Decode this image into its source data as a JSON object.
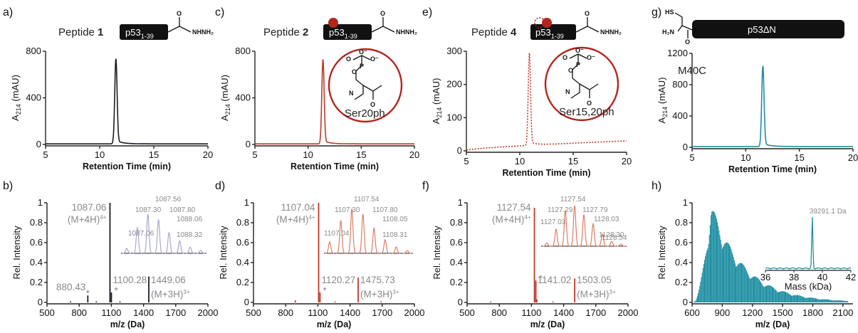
{
  "panels": {
    "a": {
      "label": "a)",
      "title_prefix": "Peptide ",
      "title_num": "1",
      "pep_box": "p53",
      "pep_sub": "1-39",
      "hydrazide": "NHNH₂",
      "ylabel": "A",
      "ylabel_sub": "214",
      "ylabel_unit": " (mAU)",
      "xlabel": "Retention Time (min)"
    },
    "c": {
      "label": "c)",
      "title_prefix": "Peptide ",
      "title_num": "2",
      "pep_box": "p53",
      "pep_sub": "1-39",
      "hydrazide": "NHNH₂",
      "ylabel": "A",
      "ylabel_sub": "214",
      "ylabel_unit": " (mAU)",
      "xlabel": "Retention Time (min)",
      "circle_label": "Ser20ph"
    },
    "e": {
      "label": "e)",
      "title_prefix": "Peptide ",
      "title_num": "4",
      "pep_box": "p53",
      "pep_sub": "1-39",
      "hydrazide": "NHNH₂",
      "ylabel": "A",
      "ylabel_sub": "214",
      "ylabel_unit": " (mAU)",
      "xlabel": "Retention Time (min)",
      "circle_label": "Ser15,20ph"
    },
    "g": {
      "label": "g)",
      "pep_box": "p53ΔN",
      "hs": "HS",
      "h2n": "H₂N",
      "mutation": "M40C",
      "ylabel": "A",
      "ylabel_sub": "214",
      "ylabel_unit": " (mAU)",
      "xlabel": "Retention Time (min)"
    },
    "b": {
      "label": "b)",
      "ylabel": "Rel. Intensity",
      "xlabel": "m/z (Da)",
      "main_peak": "1087.06",
      "main_ion": "(M+4H)",
      "main_charge": "4+",
      "peak2": "880.43",
      "peak3": "1100.28",
      "peak4": "1449.06",
      "peak4_ion": "(M+3H)",
      "peak4_charge": "3+",
      "inset_labels": [
        "1087.06",
        "1087.30",
        "1087.56",
        "1087.80",
        "1088.06",
        "1088.32"
      ]
    },
    "d": {
      "label": "d)",
      "ylabel": "Rel. Intensity",
      "xlabel": "m/z (Da)",
      "main_peak": "1107.04",
      "main_ion": "(M+4H)",
      "main_charge": "4+",
      "peak3": "1120.27",
      "peak4": "1475.73",
      "peak4_ion": "(M+3H)",
      "peak4_charge": "3+",
      "inset_labels": [
        "1107.04",
        "1107.30",
        "1107.54",
        "1107.80",
        "1108.05",
        "1108.31"
      ]
    },
    "f": {
      "label": "f)",
      "ylabel": "Rel. Intensity",
      "xlabel": "m/z (Da)",
      "main_peak": "1127.54",
      "main_ion": "(M+4H)",
      "main_charge": "4+",
      "peak3": "1141.02",
      "peak4": "1503.05",
      "peak4_ion": "(M+3H)",
      "peak4_charge": "3+",
      "inset_labels": [
        "1127.03",
        "1127.29",
        "1127.54",
        "1127.79",
        "1128.03",
        "1128.30",
        "1128.54"
      ]
    },
    "h": {
      "label": "h)",
      "ylabel": "Rel. Intensity",
      "xlabel": "m/z (Da)",
      "inset_peak": "39291.1 Da",
      "inset_xlabel": "Mass (kDa)",
      "inset_ticks": [
        "36",
        "38",
        "40",
        "42"
      ]
    }
  },
  "colors": {
    "black": "#1c1c26",
    "red": "#c0392b",
    "teal": "#1f8fa3",
    "grey": "#8a8a8a",
    "lavender": "#a7a8cf",
    "salmon": "#e07d62"
  },
  "chart_data": [
    {
      "panel": "a",
      "type": "line",
      "xlabel": "Retention Time (min)",
      "ylabel": "A214 (mAU)",
      "xlim": [
        5,
        20
      ],
      "ylim": [
        0,
        800
      ],
      "xticks": [
        "5",
        "10",
        "15",
        "20"
      ],
      "yticks": [
        "0",
        "400",
        "800"
      ],
      "series": [
        {
          "peak_x": 11.5,
          "peak_y": 730,
          "baseline": 5
        }
      ]
    },
    {
      "panel": "c",
      "type": "line",
      "xlabel": "Retention Time (min)",
      "ylabel": "A214 (mAU)",
      "xlim": [
        5,
        20
      ],
      "ylim": [
        0,
        800
      ],
      "xticks": [
        "5",
        "10",
        "15",
        "20"
      ],
      "yticks": [
        "0",
        "400",
        "800"
      ],
      "series": [
        {
          "peak_x": 11.4,
          "peak_y": 725,
          "baseline": 5
        }
      ]
    },
    {
      "panel": "e",
      "type": "line",
      "xlabel": "Retention Time (min)",
      "ylabel": "A214 (mAU)",
      "xlim": [
        5,
        20
      ],
      "ylim": [
        0,
        300
      ],
      "xticks": [
        "5",
        "10",
        "15",
        "20"
      ],
      "yticks": [
        "0",
        "100",
        "200",
        "300"
      ],
      "series": [
        {
          "peak_x": 10.9,
          "peak_y": 278,
          "baseline_start": 2,
          "baseline_end": 30,
          "dashed": true
        }
      ]
    },
    {
      "panel": "g",
      "type": "line",
      "xlabel": "Retention Time (min)",
      "ylabel": "A214 (mAU)",
      "xlim": [
        5,
        20
      ],
      "ylim": [
        0,
        1200
      ],
      "xticks": [
        "5",
        "10",
        "15",
        "20"
      ],
      "yticks": [
        "0",
        "400",
        "800",
        "1200"
      ],
      "series": [
        {
          "peak_x": 11.6,
          "peak_y": 1030,
          "baseline": 10
        }
      ]
    },
    {
      "panel": "b",
      "type": "bar",
      "xlabel": "m/z (Da)",
      "ylabel": "Rel. Intensity",
      "xlim": [
        500,
        2000
      ],
      "ylim": [
        0,
        1
      ],
      "xticks": [
        "500",
        "800",
        "1100",
        "1400",
        "1700",
        "2000"
      ],
      "yticks": [
        "0",
        "0.2",
        "0.4",
        "0.6",
        "0.8",
        "1"
      ],
      "peaks": [
        [
          880.43,
          0.07
        ],
        [
          1087.06,
          1.0
        ],
        [
          1100.28,
          0.1
        ],
        [
          1449.06,
          0.26
        ],
        [
          720,
          0.01
        ],
        [
          960,
          0.01
        ],
        [
          1180,
          0.01
        ]
      ],
      "inset_heights": [
        0.12,
        0.62,
        0.95,
        0.82,
        0.5,
        0.3,
        0.15,
        0.07
      ]
    },
    {
      "panel": "d",
      "type": "bar",
      "xlabel": "m/z (Da)",
      "ylabel": "Rel. Intensity",
      "xlim": [
        500,
        2000
      ],
      "ylim": [
        0,
        1
      ],
      "xticks": [
        "500",
        "800",
        "1100",
        "1400",
        "1700",
        "2000"
      ],
      "yticks": [
        "0",
        "0.2",
        "0.4",
        "0.6",
        "0.8",
        "1"
      ],
      "peaks": [
        [
          1107.04,
          1.0
        ],
        [
          1120.27,
          0.1
        ],
        [
          1475.73,
          0.25
        ],
        [
          890,
          0.02
        ],
        [
          1260,
          0.01
        ],
        [
          1690,
          0.01
        ]
      ],
      "inset_heights": [
        0.25,
        0.72,
        0.98,
        0.86,
        0.55,
        0.3,
        0.14,
        0.06
      ]
    },
    {
      "panel": "f",
      "type": "bar",
      "xlabel": "m/z (Da)",
      "ylabel": "Rel. Intensity",
      "xlim": [
        500,
        2000
      ],
      "ylim": [
        0,
        1
      ],
      "xticks": [
        "500",
        "800",
        "1100",
        "1400",
        "1700",
        "2000"
      ],
      "yticks": [
        "0",
        "0.2",
        "0.4",
        "0.6",
        "0.8",
        "1"
      ],
      "peaks": [
        [
          1127.54,
          0.95
        ],
        [
          1141.02,
          0.22
        ],
        [
          1503.05,
          0.24
        ],
        [
          1150,
          0.03
        ],
        [
          720,
          0.01
        ],
        [
          1300,
          0.01
        ]
      ],
      "inset_heights": [
        0.08,
        0.42,
        0.88,
        1.0,
        0.78,
        0.55,
        0.3,
        0.12,
        0.05
      ]
    },
    {
      "panel": "h",
      "type": "bar",
      "xlabel": "m/z (Da)",
      "ylabel": "Rel. Intensity",
      "xlim": [
        600,
        2200
      ],
      "ylim": [
        0,
        1
      ],
      "xticks": [
        "600",
        "900",
        "1200",
        "1500",
        "1800",
        "2100"
      ],
      "yticks": [
        "0",
        "0.2",
        "0.4",
        "0.6",
        "0.8",
        "1"
      ],
      "envelope_start": 620,
      "envelope_peak": 790,
      "envelope_end": 2150,
      "envelope_max": 1.0,
      "inset": {
        "xlim": [
          36,
          42
        ],
        "peak_kda": 39.29,
        "peak_height": 1.0
      }
    }
  ]
}
